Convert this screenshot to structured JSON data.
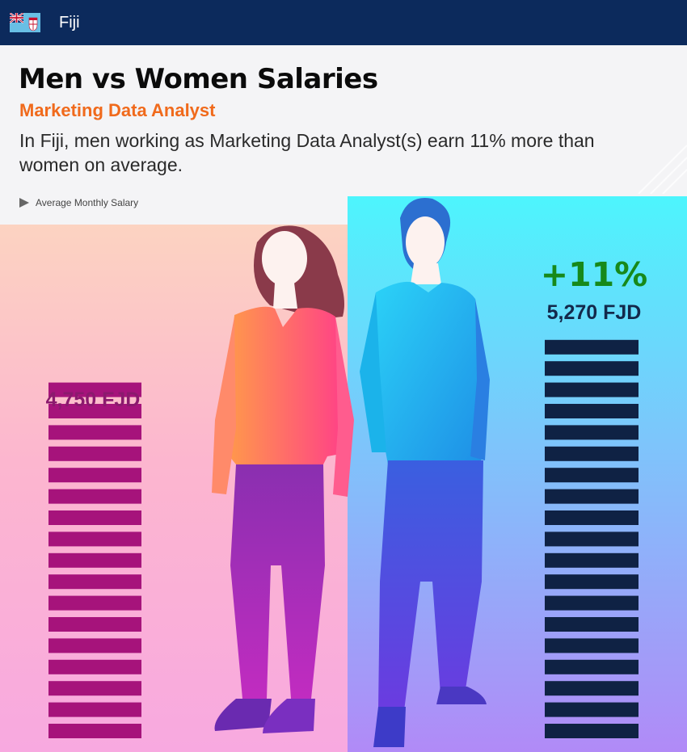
{
  "header": {
    "country": "Fiji",
    "flag_icon": "fiji-flag-icon"
  },
  "title": "Men vs Women Salaries",
  "subtitle": "Marketing Data Analyst",
  "description": "In Fiji, men working as Marketing Data Analyst(s) earn 11% more than women on average.",
  "legend": {
    "label": "Average Monthly Salary"
  },
  "difference_label": "+11%",
  "colors": {
    "women_bars": "#a6137b",
    "men_bars": "#0f2244",
    "difference": "#17891a",
    "subtitle": "#f06a1c",
    "header_bg": "#0c2a5c"
  },
  "chart_data": {
    "type": "bar",
    "categories": [
      "Women",
      "Men"
    ],
    "values": [
      4750,
      5270
    ],
    "value_labels": [
      "4,750 FJD",
      "5,270 FJD"
    ],
    "unit": "FJD",
    "difference_percent": 11
  }
}
